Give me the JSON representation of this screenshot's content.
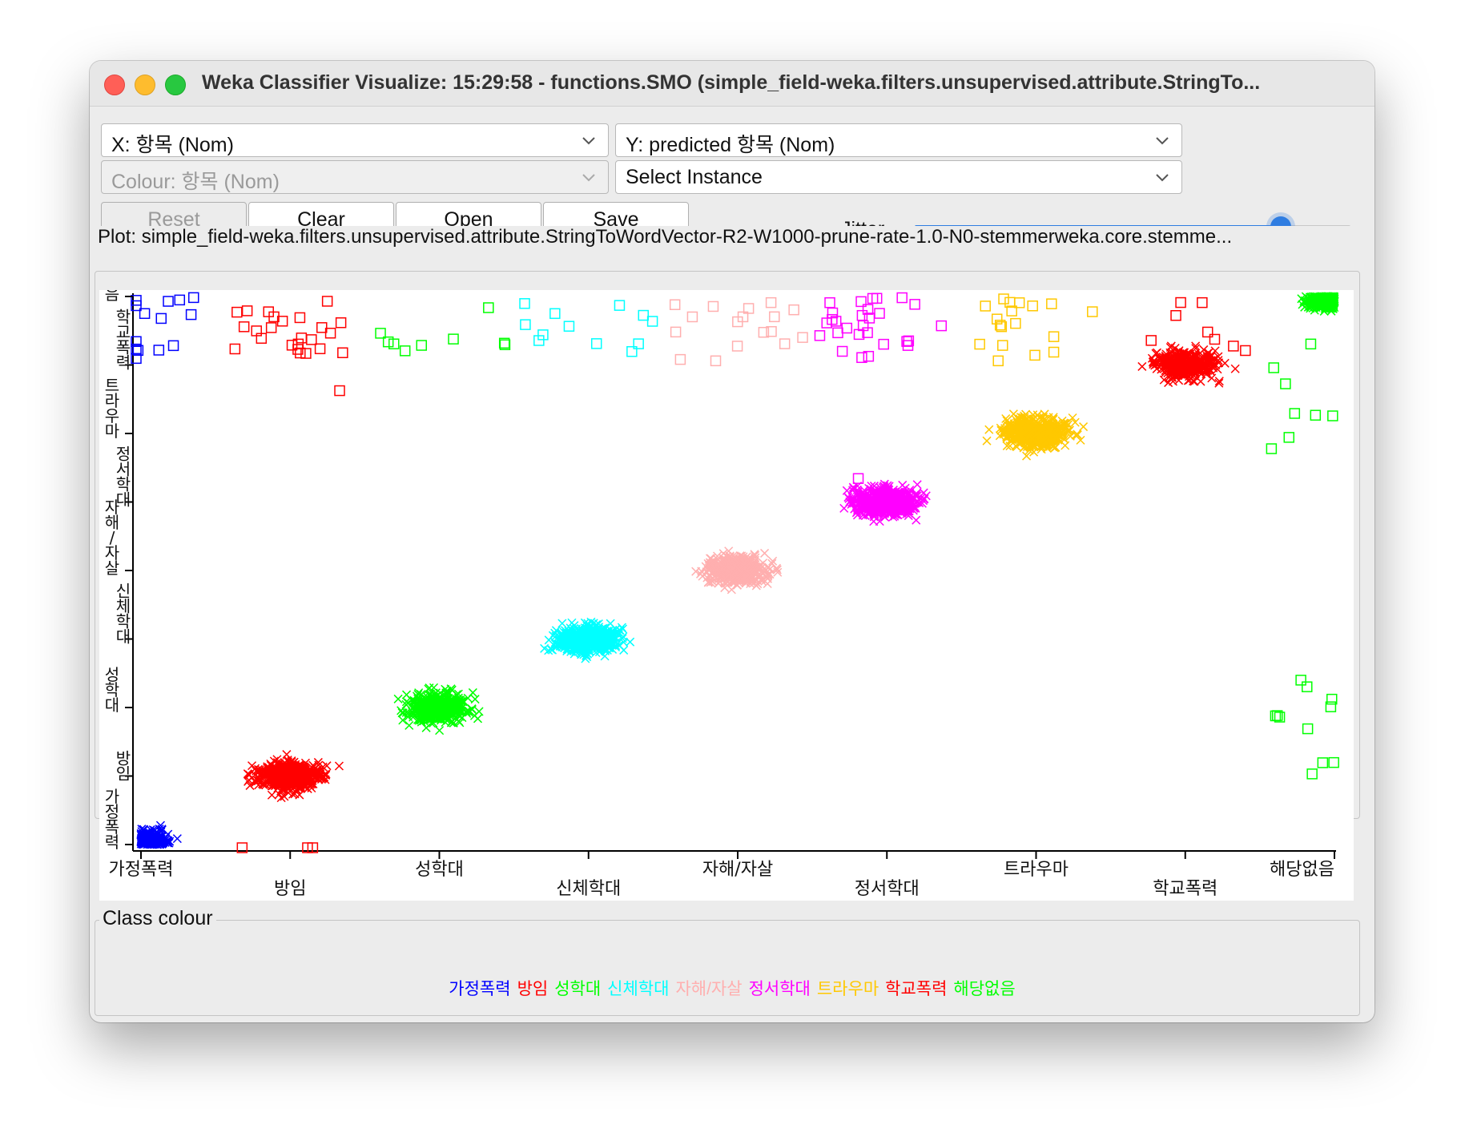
{
  "window": {
    "title": "Weka Classifier Visualize: 15:29:58 - functions.SMO (simple_field-weka.filters.unsupervised.attribute.StringTo..."
  },
  "controls": {
    "x_axis": "X: 항목 (Nom)",
    "y_axis": "Y: predicted 항목 (Nom)",
    "colour": "Colour: 항목 (Nom)",
    "select_instance": "Select Instance",
    "buttons": {
      "reset": "Reset",
      "clear": "Clear",
      "open": "Open",
      "save": "Save"
    },
    "jitter_label": "Jitter",
    "jitter_value": 0.84
  },
  "plot": {
    "caption": "Plot: simple_field-weka.filters.unsupervised.attribute.StringToWordVector-R2-W1000-prune-rate-1.0-N0-stemmerweka.core.stemme..."
  },
  "legend": {
    "caption": "Class colour"
  },
  "chart_data": {
    "type": "scatter",
    "xlabel": "",
    "ylabel": "",
    "categories": [
      "가정폭력",
      "방임",
      "성학대",
      "신체학대",
      "자해/자살",
      "정서학대",
      "트라우마",
      "학교폭력",
      "해당없음"
    ],
    "colors": [
      "#0000ff",
      "#ff0000",
      "#00ff00",
      "#00ffff",
      "#ffafaf",
      "#ff00ff",
      "#ffc800",
      "#ff0000",
      "#00ff00"
    ],
    "marker_correct": "x",
    "marker_incorrect": "square",
    "approx_correct_counts": [
      260,
      520,
      430,
      480,
      420,
      600,
      560,
      360,
      500
    ],
    "approx_misclassified_counts": [
      [
        0,
        0,
        0,
        0,
        0,
        0,
        0,
        0,
        14
      ],
      [
        3,
        0,
        0,
        0,
        0,
        0,
        0,
        1,
        24
      ],
      [
        0,
        0,
        0,
        0,
        0,
        0,
        0,
        0,
        9
      ],
      [
        0,
        0,
        0,
        0,
        0,
        0,
        0,
        0,
        12
      ],
      [
        0,
        0,
        0,
        0,
        0,
        0,
        0,
        0,
        17
      ],
      [
        0,
        0,
        0,
        0,
        0,
        1,
        0,
        0,
        28
      ],
      [
        0,
        0,
        0,
        0,
        0,
        0,
        0,
        0,
        18
      ],
      [
        0,
        0,
        0,
        0,
        0,
        0,
        0,
        0,
        8
      ],
      [
        0,
        3,
        8,
        0,
        0,
        0,
        5,
        3,
        0
      ]
    ]
  }
}
